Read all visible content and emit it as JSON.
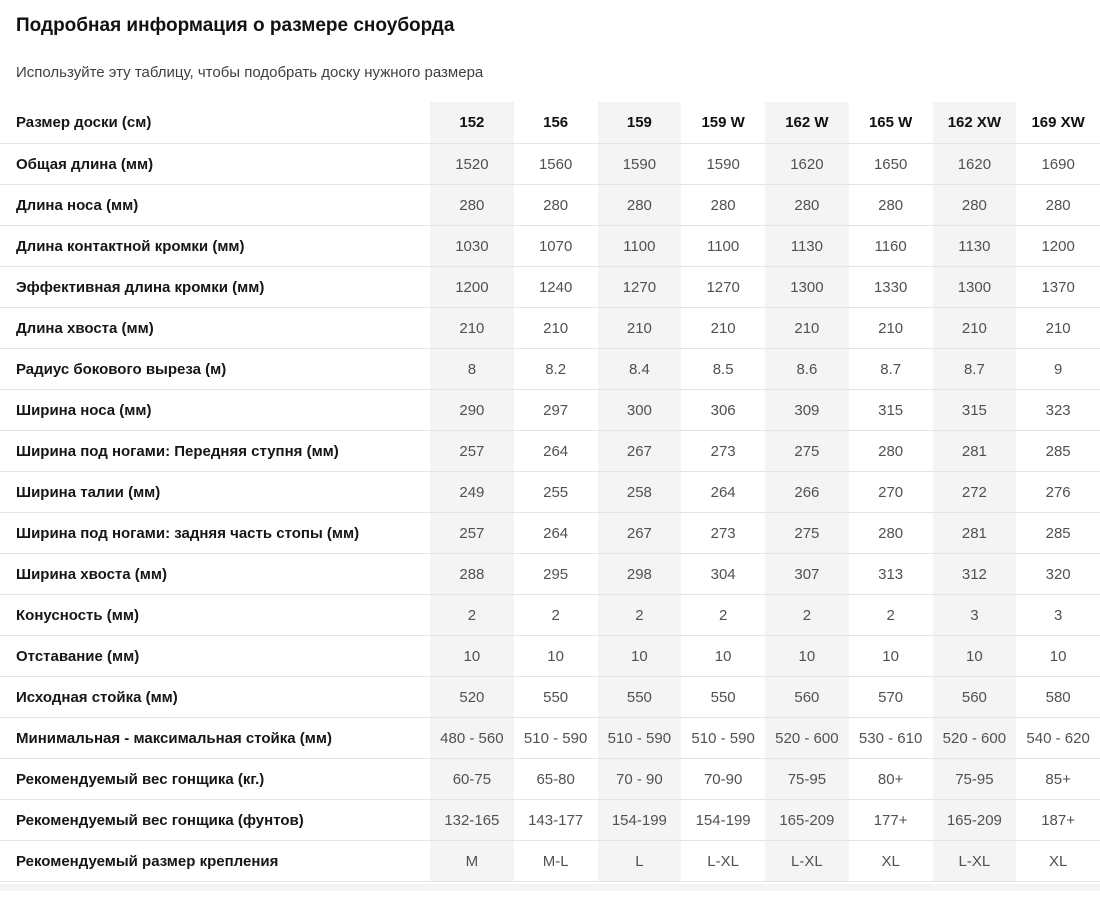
{
  "page": {
    "title": "Подробная информация о размере сноуборда",
    "subtitle": "Используйте эту таблицу, чтобы подобрать доску нужного размера"
  },
  "table": {
    "header": {
      "label": "Размер доски (см)",
      "columns": [
        "152",
        "156",
        "159",
        "159 W",
        "162 W",
        "165 W",
        "162 XW",
        "169 XW"
      ]
    },
    "striped_column_indexes": [
      0,
      2,
      4,
      6
    ],
    "rows": [
      {
        "label": "Общая длина (мм)",
        "values": [
          "1520",
          "1560",
          "1590",
          "1590",
          "1620",
          "1650",
          "1620",
          "1690"
        ]
      },
      {
        "label": "Длина носа (мм)",
        "values": [
          "280",
          "280",
          "280",
          "280",
          "280",
          "280",
          "280",
          "280"
        ]
      },
      {
        "label": "Длина контактной кромки (мм)",
        "values": [
          "1030",
          "1070",
          "1100",
          "1100",
          "1130",
          "1160",
          "1130",
          "1200"
        ]
      },
      {
        "label": "Эффективная длина кромки (мм)",
        "values": [
          "1200",
          "1240",
          "1270",
          "1270",
          "1300",
          "1330",
          "1300",
          "1370"
        ]
      },
      {
        "label": "Длина хвоста (мм)",
        "values": [
          "210",
          "210",
          "210",
          "210",
          "210",
          "210",
          "210",
          "210"
        ]
      },
      {
        "label": "Радиус бокового выреза (м)",
        "values": [
          "8",
          "8.2",
          "8.4",
          "8.5",
          "8.6",
          "8.7",
          "8.7",
          "9"
        ]
      },
      {
        "label": "Ширина носа (мм)",
        "values": [
          "290",
          "297",
          "300",
          "306",
          "309",
          "315",
          "315",
          "323"
        ]
      },
      {
        "label": "Ширина под ногами: Передняя ступня (мм)",
        "values": [
          "257",
          "264",
          "267",
          "273",
          "275",
          "280",
          "281",
          "285"
        ]
      },
      {
        "label": "Ширина талии (мм)",
        "values": [
          "249",
          "255",
          "258",
          "264",
          "266",
          "270",
          "272",
          "276"
        ]
      },
      {
        "label": "Ширина под ногами: задняя часть стопы (мм)",
        "values": [
          "257",
          "264",
          "267",
          "273",
          "275",
          "280",
          "281",
          "285"
        ]
      },
      {
        "label": "Ширина хвоста (мм)",
        "values": [
          "288",
          "295",
          "298",
          "304",
          "307",
          "313",
          "312",
          "320"
        ]
      },
      {
        "label": "Конусность (мм)",
        "values": [
          "2",
          "2",
          "2",
          "2",
          "2",
          "2",
          "3",
          "3"
        ]
      },
      {
        "label": "Отставание (мм)",
        "values": [
          "10",
          "10",
          "10",
          "10",
          "10",
          "10",
          "10",
          "10"
        ]
      },
      {
        "label": "Исходная стойка (мм)",
        "values": [
          "520",
          "550",
          "550",
          "550",
          "560",
          "570",
          "560",
          "580"
        ]
      },
      {
        "label": "Минимальная - максимальная стойка (мм)",
        "values": [
          "480 - 560",
          "510 - 590",
          "510 - 590",
          "510 - 590",
          "520 - 600",
          "530 - 610",
          "520 - 600",
          "540 - 620"
        ]
      },
      {
        "label": "Рекомендуемый вес гонщика (кг.)",
        "values": [
          "60-75",
          "65-80",
          "70 - 90",
          "70-90",
          "75-95",
          "80+",
          "75-95",
          "85+"
        ]
      },
      {
        "label": "Рекомендуемый вес гонщика (фунтов)",
        "values": [
          "132-165",
          "143-177",
          "154-199",
          "154-199",
          "165-209",
          "177+",
          "165-209",
          "187+"
        ]
      },
      {
        "label": "Рекомендуемый размер крепления",
        "values": [
          "M",
          "M-L",
          "L",
          "L-XL",
          "L-XL",
          "XL",
          "L-XL",
          "XL"
        ]
      }
    ],
    "colors": {
      "stripe": "#f4f4f4",
      "row_border": "#e4e4e4",
      "value_text": "#515151",
      "label_text": "#161616"
    }
  }
}
